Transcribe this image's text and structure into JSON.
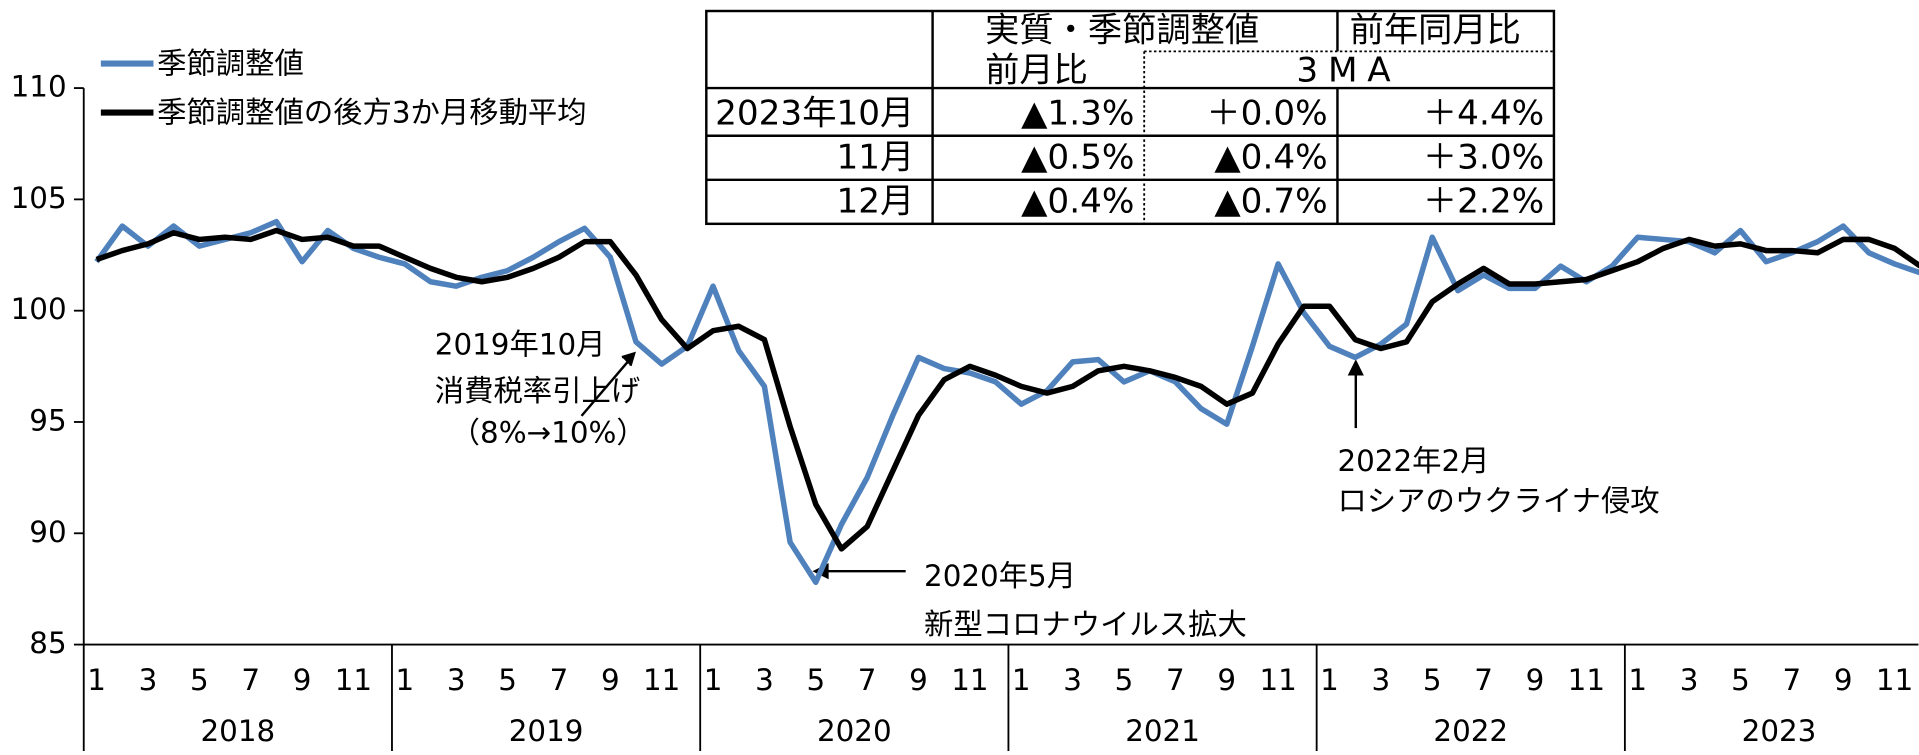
{
  "chart_data": {
    "type": "line",
    "series": [
      {
        "name": "季節調整値",
        "color": "#4f81bd",
        "values": [
          102.2,
          103.8,
          102.9,
          103.8,
          102.9,
          103.2,
          103.5,
          104.0,
          102.2,
          103.6,
          102.8,
          102.4,
          102.1,
          101.3,
          101.1,
          101.5,
          101.8,
          102.4,
          103.1,
          103.7,
          102.4,
          98.6,
          97.6,
          98.4,
          101.1,
          98.2,
          96.6,
          89.6,
          87.8,
          90.4,
          92.5,
          95.3,
          97.9,
          97.4,
          97.2,
          96.8,
          95.8,
          96.4,
          97.7,
          97.8,
          96.8,
          97.3,
          96.8,
          95.6,
          94.9,
          98.4,
          102.1,
          99.9,
          98.4,
          97.9,
          98.5,
          99.4,
          103.3,
          100.9,
          101.6,
          101.0,
          101.0,
          102.0,
          101.3,
          102.0,
          103.3,
          103.2,
          103.1,
          102.6,
          103.6,
          102.2,
          102.6,
          103.1,
          103.8,
          102.6,
          102.1,
          101.7
        ]
      },
      {
        "name": "季節調整値の後方3か月移動平均",
        "color": "#000000",
        "values": [
          102.3,
          102.7,
          103.0,
          103.5,
          103.2,
          103.3,
          103.2,
          103.6,
          103.2,
          103.3,
          102.9,
          102.9,
          102.4,
          101.9,
          101.5,
          101.3,
          101.5,
          101.9,
          102.4,
          103.1,
          103.1,
          101.6,
          99.6,
          98.3,
          99.1,
          99.3,
          98.7,
          94.8,
          91.3,
          89.3,
          90.3,
          92.8,
          95.3,
          96.9,
          97.5,
          97.1,
          96.6,
          96.3,
          96.6,
          97.3,
          97.5,
          97.3,
          97.0,
          96.6,
          95.8,
          96.3,
          98.5,
          100.2,
          100.2,
          98.7,
          98.3,
          98.6,
          100.4,
          101.2,
          101.9,
          101.2,
          101.2,
          101.3,
          101.4,
          101.8,
          102.2,
          102.8,
          103.2,
          102.9,
          103.0,
          102.7,
          102.7,
          102.6,
          103.2,
          103.2,
          102.8,
          102.0
        ]
      }
    ],
    "categories": [
      "1",
      null,
      "3",
      null,
      "5",
      null,
      "7",
      null,
      "9",
      null,
      "11",
      null,
      "1",
      null,
      "3",
      null,
      "5",
      null,
      "7",
      null,
      "9",
      null,
      "11",
      null,
      "1",
      null,
      "3",
      null,
      "5",
      null,
      "7",
      null,
      "9",
      null,
      "11",
      null,
      "1",
      null,
      "3",
      null,
      "5",
      null,
      "7",
      null,
      "9",
      null,
      "11",
      null,
      "1",
      null,
      "3",
      null,
      "5",
      null,
      "7",
      null,
      "9",
      null,
      "11",
      null,
      "1",
      null,
      "3",
      null,
      "5",
      null,
      "7",
      null,
      "9",
      null,
      "11",
      null
    ],
    "years": [
      "2018",
      "2019",
      "2020",
      "2021",
      "2022",
      "2023"
    ],
    "ylim": [
      85,
      110
    ],
    "yticks": [
      85,
      90,
      95,
      100,
      105,
      110
    ],
    "annotations": [
      {
        "lines": [
          "2019年10月",
          "消費税率引上げ",
          "（8%→10%）"
        ]
      },
      {
        "lines": [
          "2020年5月",
          "新型コロナウイルス拡大"
        ]
      },
      {
        "lines": [
          "2022年2月",
          "ロシアのウクライナ侵攻"
        ]
      }
    ]
  },
  "table": {
    "header": [
      "実質・季節調整値",
      "前年同月比"
    ],
    "subheader": [
      "前月比",
      "3MA"
    ],
    "rows": [
      [
        "2023年10月",
        "▲1.3%",
        "＋0.0%",
        "＋4.4%"
      ],
      [
        "11月",
        "▲0.5%",
        "▲0.4%",
        "＋3.0%"
      ],
      [
        "12月",
        "▲0.4%",
        "▲0.7%",
        "＋2.2%"
      ]
    ]
  }
}
